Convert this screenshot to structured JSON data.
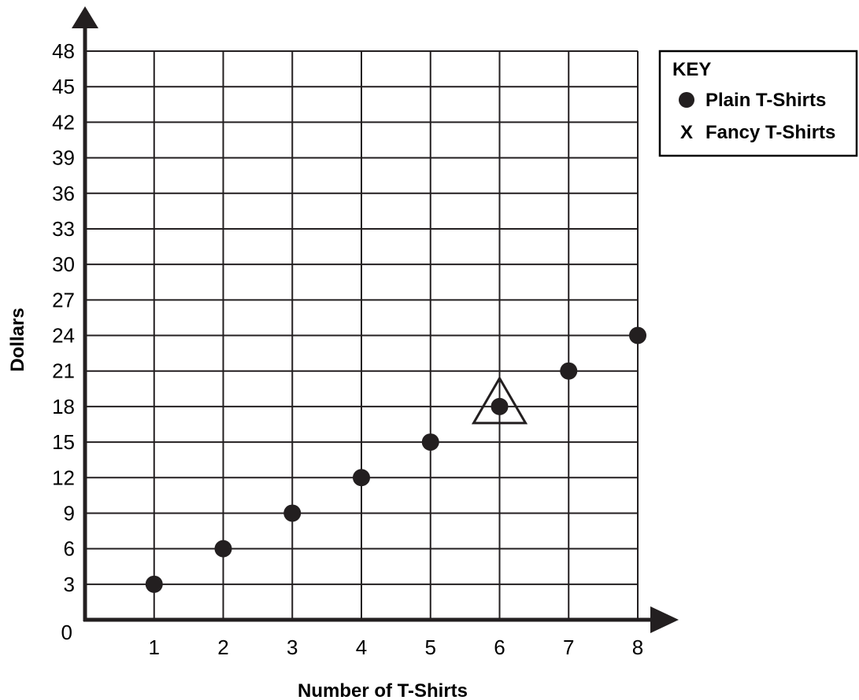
{
  "chart_data": {
    "type": "scatter",
    "xlabel": "Number of T-Shirts",
    "ylabel": "Dollars",
    "xlim": [
      0,
      8
    ],
    "ylim": [
      0,
      48
    ],
    "x_ticks": [
      "1",
      "2",
      "3",
      "4",
      "5",
      "6",
      "7",
      "8"
    ],
    "y_ticks": [
      "0",
      "3",
      "6",
      "9",
      "12",
      "15",
      "18",
      "21",
      "24",
      "27",
      "30",
      "33",
      "36",
      "39",
      "42",
      "45",
      "48"
    ],
    "grid": true,
    "legend": {
      "title": "KEY",
      "placement": "top-right",
      "entries": [
        {
          "marker": "dot",
          "label": "Plain T-Shirts"
        },
        {
          "marker": "x",
          "symbol": "X",
          "label": "Fancy T-Shirts"
        }
      ]
    },
    "series": [
      {
        "name": "Plain T-Shirts",
        "marker": "dot",
        "points": [
          {
            "x": 1,
            "y": 3
          },
          {
            "x": 2,
            "y": 6
          },
          {
            "x": 3,
            "y": 9
          },
          {
            "x": 4,
            "y": 12
          },
          {
            "x": 5,
            "y": 15
          },
          {
            "x": 6,
            "y": 18
          },
          {
            "x": 7,
            "y": 21
          },
          {
            "x": 8,
            "y": 24
          }
        ]
      }
    ],
    "annotations": [
      {
        "type": "triangle",
        "x": 6,
        "y": 18
      }
    ]
  }
}
